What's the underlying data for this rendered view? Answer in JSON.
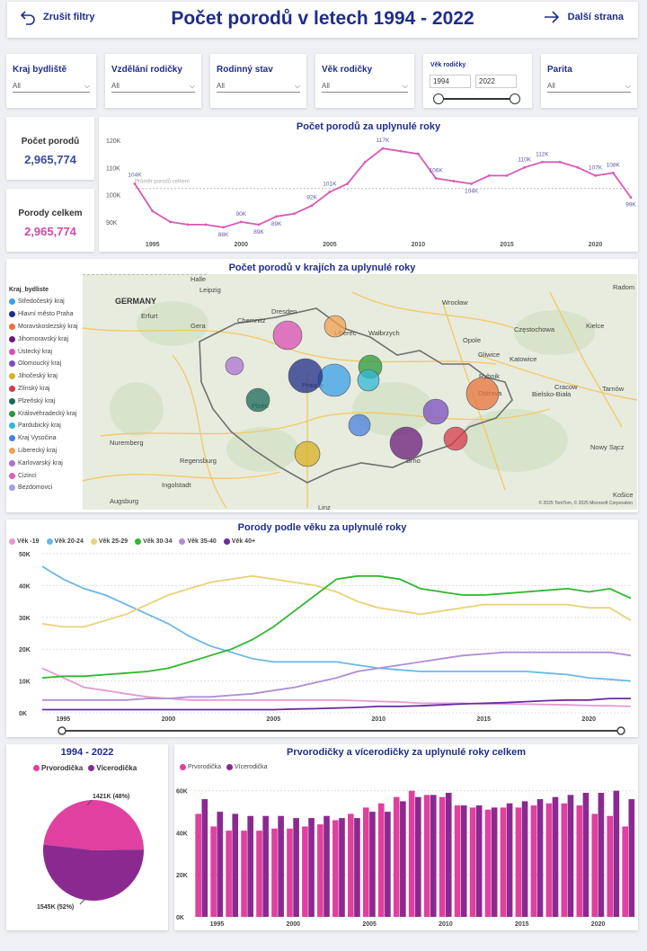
{
  "header": {
    "back_label": "Zrušit filtry",
    "title": "Počet porodů v letech 1994 - 2022",
    "next_label": "Další strana"
  },
  "slicers": [
    {
      "label": "Kraj bydliště",
      "value": "All"
    },
    {
      "label": "Vzdělání rodičky",
      "value": "All"
    },
    {
      "label": "Rodinný stav",
      "value": "All"
    },
    {
      "label": "Věk rodičky",
      "value": "All"
    },
    {
      "label": "Parita",
      "value": "All"
    }
  ],
  "age_range": {
    "label": "Věk rodičky",
    "from": "1994",
    "to": "2022"
  },
  "kpis": [
    {
      "label": "Počet porodů",
      "value": "2,965,774",
      "color": "#3b4aa0"
    },
    {
      "label": "Porody celkem",
      "value": "2,965,774",
      "color": "#d04aa7"
    }
  ],
  "line_chart": {
    "title": "Počet porodů za uplynulé roky",
    "avg_label": "Průměr porodů celkem",
    "y_ticks": [
      "120K",
      "110K",
      "100K",
      "90K"
    ],
    "x_ticks": [
      "1995",
      "2000",
      "2005",
      "2010",
      "2015",
      "2020"
    ],
    "data_labels": [
      "104K",
      "89K",
      "88K",
      "90K",
      "89K",
      "92K",
      "101K",
      "117K",
      "106K",
      "104K",
      "110K",
      "112K",
      "107K",
      "108K",
      "99K"
    ]
  },
  "map": {
    "title": "Počet porodů v krajích za uplynulé roky",
    "legend_title": "Kraj_bydliste",
    "regions": [
      {
        "name": "Středočeský kraj",
        "color": "#3aa0e8"
      },
      {
        "name": "Hlavní město Praha",
        "color": "#1f2d8a"
      },
      {
        "name": "Moravskoslezský kraj",
        "color": "#e8743b"
      },
      {
        "name": "Jihomoravský kraj",
        "color": "#6b1b7a"
      },
      {
        "name": "Ústecký kraj",
        "color": "#d94fb3"
      },
      {
        "name": "Olomoucký kraj",
        "color": "#7a4fc0"
      },
      {
        "name": "Jihočeský kraj",
        "color": "#d8b020"
      },
      {
        "name": "Zlínský kraj",
        "color": "#d63a4a"
      },
      {
        "name": "Plzeňský kraj",
        "color": "#1a6a5a"
      },
      {
        "name": "Královéhradecký kraj",
        "color": "#2a9a3a"
      },
      {
        "name": "Pardubický kraj",
        "color": "#30b8d8"
      },
      {
        "name": "Kraj Vysočina",
        "color": "#4a80e0"
      },
      {
        "name": "Liberecký kraj",
        "color": "#f0a050"
      },
      {
        "name": "Karlovarský kraj",
        "color": "#b070d0"
      },
      {
        "name": "Cizinci",
        "color": "#e060b0"
      },
      {
        "name": "Bezdomovci",
        "color": "#a0a0e0"
      }
    ],
    "places": [
      "Halle",
      "Leipzig",
      "GERMANY",
      "Dresden",
      "Chemnitz",
      "Erfurt",
      "Gera",
      "Liberec",
      "Wałbrzych",
      "Wrocław",
      "Opole",
      "Częstochowa",
      "Radom",
      "Kielce",
      "Katowice",
      "Gliwice",
      "Rybnik",
      "Ostrava",
      "Bielsko-Biała",
      "Cracow",
      "Tarnów",
      "Praque",
      "Plzen",
      "Brno",
      "Nuremberg",
      "Regensburg",
      "Ingolstadt",
      "Augsburg",
      "Linz",
      "Košice",
      "Nowy Sącz"
    ],
    "copyright": "© 2025 TomTom, © 2025 Microsoft Corporation"
  },
  "age_chart": {
    "title": "Porody podle věku za uplynulé roky",
    "series": [
      {
        "name": "Věk -19",
        "color": "#e79ad0"
      },
      {
        "name": "Věk 20-24",
        "color": "#6ab8e8"
      },
      {
        "name": "Věk 25-29",
        "color": "#e8d27a"
      },
      {
        "name": "Věk 30-34",
        "color": "#2eb82e"
      },
      {
        "name": "Věk 35-40",
        "color": "#b18ed6"
      },
      {
        "name": "Věk 40+",
        "color": "#6a2ca0"
      }
    ],
    "y_ticks": [
      "50K",
      "40K",
      "30K",
      "20K",
      "10K",
      "0K"
    ],
    "x_ticks": [
      "1995",
      "2000",
      "2005",
      "2010",
      "2015",
      "2020"
    ]
  },
  "pie": {
    "title": "1994 - 2022",
    "legend": [
      {
        "name": "Prvorodička",
        "color": "#e040a0"
      },
      {
        "name": "Vícerodička",
        "color": "#8a2a90"
      }
    ],
    "label_top": "1421K (48%)",
    "label_bottom": "1545K (52%)"
  },
  "bar_chart": {
    "title": "Prvorodičky a vícerodičky za uplynulé roky celkem",
    "legend": [
      {
        "name": "Prvorodička",
        "color": "#e040a0"
      },
      {
        "name": "Vícerodička",
        "color": "#8a2a90"
      }
    ],
    "y_ticks": [
      "60K",
      "40K",
      "20K",
      "0K"
    ],
    "x_ticks": [
      "1995",
      "2000",
      "2005",
      "2010",
      "2015",
      "2020"
    ]
  },
  "chart_data": [
    {
      "type": "line",
      "title": "Počet porodů za uplynulé roky",
      "x": [
        1994,
        1995,
        1996,
        1997,
        1998,
        1999,
        2000,
        2001,
        2002,
        2003,
        2004,
        2005,
        2006,
        2007,
        2008,
        2009,
        2010,
        2011,
        2012,
        2013,
        2014,
        2015,
        2016,
        2017,
        2018,
        2019,
        2020,
        2021,
        2022
      ],
      "values": [
        104,
        94,
        90,
        89,
        89,
        88,
        90,
        89,
        92,
        93,
        96,
        101,
        104,
        112,
        117,
        116,
        115,
        106,
        105,
        104,
        107,
        107,
        110,
        112,
        112,
        110,
        107,
        108,
        99
      ],
      "ylim": [
        85,
        122
      ]
    },
    {
      "type": "line",
      "title": "Porody podle věku za uplynulé roky",
      "x": [
        1994,
        1995,
        1996,
        1997,
        1998,
        1999,
        2000,
        2001,
        2002,
        2003,
        2004,
        2005,
        2006,
        2007,
        2008,
        2009,
        2010,
        2011,
        2012,
        2013,
        2014,
        2015,
        2016,
        2017,
        2018,
        2019,
        2020,
        2021,
        2022
      ],
      "series": [
        {
          "name": "Věk -19",
          "values": [
            14,
            11,
            8,
            7,
            6,
            5,
            4.5,
            4,
            4,
            4,
            4,
            4,
            4,
            4,
            4,
            3.8,
            3.6,
            3.4,
            3,
            3,
            3,
            2.8,
            2.8,
            2.7,
            2.6,
            2.5,
            2.3,
            2.2,
            2
          ]
        },
        {
          "name": "Věk 20-24",
          "values": [
            46,
            42,
            39,
            37,
            34,
            31,
            28,
            24,
            21,
            19,
            17,
            16,
            16,
            16,
            16,
            15,
            14,
            13.5,
            13,
            13,
            13,
            13,
            13,
            13,
            12.5,
            12,
            11,
            10.5,
            10
          ]
        },
        {
          "name": "Věk 25-29",
          "values": [
            28,
            27,
            27,
            29,
            31,
            34,
            37,
            39,
            41,
            42,
            43,
            42,
            41,
            40,
            38,
            35,
            33,
            32,
            31,
            32,
            33,
            34,
            34,
            34,
            34,
            34,
            33,
            33,
            29
          ]
        },
        {
          "name": "Věk 30-34",
          "values": [
            11,
            11.5,
            11.5,
            12,
            12.5,
            13,
            14,
            16,
            18,
            20,
            23,
            27,
            32,
            37,
            42,
            43,
            43,
            42,
            39,
            38,
            37,
            37,
            37.5,
            38,
            38.5,
            39,
            38,
            39,
            36
          ]
        },
        {
          "name": "Věk 35-40",
          "values": [
            4,
            4,
            4,
            4,
            4,
            4.5,
            4.5,
            5,
            5,
            5.5,
            6,
            7,
            8,
            9.5,
            11,
            13,
            14,
            15,
            16,
            17,
            18,
            18.5,
            19,
            19,
            19,
            19,
            19,
            19,
            18
          ]
        },
        {
          "name": "Věk 40+",
          "values": [
            1,
            1,
            1,
            1,
            1,
            1,
            1,
            1,
            1,
            1,
            1,
            1,
            1.2,
            1.3,
            1.5,
            1.7,
            2,
            2,
            2.2,
            2.5,
            2.8,
            3,
            3.2,
            3.5,
            3.8,
            4,
            4,
            4.5,
            4.5
          ]
        }
      ],
      "ylim": [
        0,
        50
      ]
    },
    {
      "type": "pie",
      "title": "1994 - 2022",
      "categories": [
        "Prvorodička",
        "Vícerodička"
      ],
      "values": [
        1421,
        1545
      ]
    },
    {
      "type": "bar",
      "title": "Prvorodičky a vícerodičky za uplynulé roky celkem",
      "categories": [
        1994,
        1995,
        1996,
        1997,
        1998,
        1999,
        2000,
        2001,
        2002,
        2003,
        2004,
        2005,
        2006,
        2007,
        2008,
        2009,
        2010,
        2011,
        2012,
        2013,
        2014,
        2015,
        2016,
        2017,
        2018,
        2019,
        2020,
        2021,
        2022
      ],
      "series": [
        {
          "name": "Prvorodička",
          "values": [
            49,
            43,
            41,
            41,
            41,
            42,
            42,
            43,
            44,
            46,
            49,
            52,
            54,
            57,
            60,
            58,
            57,
            53,
            52,
            51,
            52,
            52,
            53,
            54,
            54,
            53,
            49,
            48,
            43
          ]
        },
        {
          "name": "Vícerodička",
          "values": [
            56,
            50,
            49,
            48,
            48,
            48,
            47,
            47,
            48,
            47,
            47,
            50,
            50,
            55,
            57,
            58,
            59,
            53,
            53,
            52,
            54,
            55,
            56,
            57,
            58,
            59,
            59,
            60,
            56
          ]
        }
      ],
      "ylim": [
        0,
        65
      ]
    }
  ]
}
